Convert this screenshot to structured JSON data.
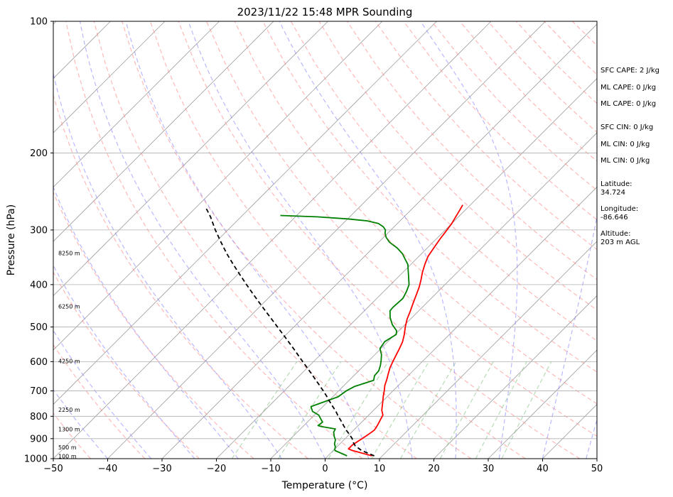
{
  "chart_data": {
    "type": "line",
    "subtype": "skew-T log-P sounding",
    "title": "2023/11/22 15:48 MPR Sounding",
    "xlabel": "Temperature (°C)",
    "ylabel": "Pressure (hPa)",
    "xlim": [
      -50,
      50
    ],
    "ylim": [
      1000,
      100
    ],
    "y_scale": "log",
    "x_ticks": [
      -50,
      -40,
      -30,
      -20,
      -10,
      0,
      10,
      20,
      30,
      40,
      50
    ],
    "x_tick_labels": [
      "−50",
      "−40",
      "−30",
      "−20",
      "−10",
      "0",
      "10",
      "20",
      "30",
      "40",
      "50"
    ],
    "y_ticks": [
      1000,
      900,
      800,
      700,
      600,
      500,
      400,
      300,
      200,
      100
    ],
    "y_tick_labels": [
      "1000",
      "900",
      "800",
      "700",
      "600",
      "500",
      "400",
      "300",
      "200",
      "100"
    ],
    "grid": true,
    "background_lines": {
      "isotherms_color": "#a0a0a0",
      "dry_adiabats_color": "#ff8080",
      "moist_adiabats_color": "#8080ff",
      "mixing_ratio_color": "#60b060"
    },
    "series": [
      {
        "color": "#ff0000",
        "style": "solid",
        "points": [
          [
            8.1,
            985
          ],
          [
            3.5,
            958
          ],
          [
            2.5,
            950
          ],
          [
            2.5,
            930
          ],
          [
            3.0,
            905
          ],
          [
            3.5,
            880
          ],
          [
            3.8,
            860
          ],
          [
            3.5,
            840
          ],
          [
            3.0,
            815
          ],
          [
            2.6,
            795
          ],
          [
            1.5,
            775
          ],
          [
            0.3,
            745
          ],
          [
            -0.8,
            720
          ],
          [
            -1.6,
            700
          ],
          [
            -2.5,
            680
          ],
          [
            -3.2,
            660
          ],
          [
            -4.0,
            640
          ],
          [
            -4.8,
            620
          ],
          [
            -5.4,
            600
          ],
          [
            -6.0,
            580
          ],
          [
            -6.6,
            560
          ],
          [
            -7.3,
            540
          ],
          [
            -8.3,
            520
          ],
          [
            -9.5,
            500
          ],
          [
            -10.6,
            480
          ],
          [
            -11.5,
            460
          ],
          [
            -12.5,
            440
          ],
          [
            -13.5,
            420
          ],
          [
            -14.3,
            405
          ],
          [
            -15.3,
            390
          ],
          [
            -16.4,
            375
          ],
          [
            -17.4,
            360
          ],
          [
            -18.3,
            345
          ],
          [
            -18.8,
            330
          ],
          [
            -19.3,
            315
          ],
          [
            -19.7,
            300
          ],
          [
            -20.0,
            290
          ],
          [
            -20.5,
            280
          ],
          [
            -21.0,
            270
          ],
          [
            -21.4,
            263
          ]
        ]
      },
      {
        "color": "#008000",
        "style": "solid",
        "points": [
          [
            3.5,
            985
          ],
          [
            0.3,
            958
          ],
          [
            0.0,
            950
          ],
          [
            -0.3,
            940
          ],
          [
            -1.0,
            925
          ],
          [
            -1.6,
            905
          ],
          [
            -2.4,
            890
          ],
          [
            -3.3,
            870
          ],
          [
            -3.6,
            855
          ],
          [
            -6.5,
            845
          ],
          [
            -7.4,
            840
          ],
          [
            -7.2,
            825
          ],
          [
            -8.2,
            810
          ],
          [
            -9.2,
            795
          ],
          [
            -11.0,
            780
          ],
          [
            -12.2,
            760
          ],
          [
            -10.5,
            740
          ],
          [
            -9.0,
            722
          ],
          [
            -8.6,
            700
          ],
          [
            -7.9,
            684
          ],
          [
            -5.5,
            662
          ],
          [
            -6.2,
            646
          ],
          [
            -6.3,
            630
          ],
          [
            -7.0,
            612
          ],
          [
            -7.8,
            596
          ],
          [
            -8.8,
            578
          ],
          [
            -10.2,
            560
          ],
          [
            -10.6,
            540
          ],
          [
            -9.8,
            520
          ],
          [
            -10.4,
            510
          ],
          [
            -12.3,
            494
          ],
          [
            -14.0,
            476
          ],
          [
            -15.3,
            459
          ],
          [
            -15.4,
            450
          ],
          [
            -15.3,
            440
          ],
          [
            -15.2,
            430
          ],
          [
            -15.8,
            415
          ],
          [
            -16.6,
            400
          ],
          [
            -18.5,
            380
          ],
          [
            -19.5,
            370
          ],
          [
            -20.5,
            360
          ],
          [
            -22.0,
            350
          ],
          [
            -23.5,
            340
          ],
          [
            -25.5,
            330
          ],
          [
            -28.0,
            320
          ],
          [
            -29.5,
            312
          ],
          [
            -30.5,
            305
          ],
          [
            -31.0,
            300
          ],
          [
            -32.0,
            295
          ],
          [
            -33.5,
            290
          ],
          [
            -36.0,
            286
          ],
          [
            -40.0,
            283
          ],
          [
            -46.0,
            280
          ],
          [
            -53.0,
            278
          ]
        ]
      },
      {
        "color": "#000000",
        "style": "dashed",
        "points": [
          [
            8.5,
            985
          ],
          [
            5.2,
            958
          ],
          [
            3.2,
            935
          ],
          [
            2.3,
            920
          ],
          [
            1.3,
            900
          ],
          [
            0.0,
            880
          ],
          [
            -1.4,
            860
          ],
          [
            -2.7,
            840
          ],
          [
            -4.0,
            820
          ],
          [
            -5.4,
            800
          ],
          [
            -6.7,
            780
          ],
          [
            -8.2,
            760
          ],
          [
            -9.7,
            740
          ],
          [
            -11.2,
            720
          ],
          [
            -12.8,
            700
          ],
          [
            -14.5,
            680
          ],
          [
            -16.3,
            660
          ],
          [
            -18.1,
            640
          ],
          [
            -20.0,
            620
          ],
          [
            -22.0,
            600
          ],
          [
            -24.0,
            580
          ],
          [
            -26.1,
            560
          ],
          [
            -28.3,
            540
          ],
          [
            -30.6,
            520
          ],
          [
            -33.0,
            500
          ],
          [
            -35.5,
            480
          ],
          [
            -38.1,
            460
          ],
          [
            -40.8,
            440
          ],
          [
            -43.6,
            420
          ],
          [
            -46.5,
            400
          ],
          [
            -49.5,
            380
          ],
          [
            -52.6,
            360
          ],
          [
            -55.8,
            340
          ],
          [
            -59.0,
            320
          ],
          [
            -62.3,
            300
          ],
          [
            -65.6,
            280
          ],
          [
            -68.5,
            265
          ]
        ]
      }
    ],
    "height_labels": [
      "100 m",
      "500 m",
      "1300 m",
      "2250 m",
      "4250 m",
      "6250 m",
      "8250 m"
    ],
    "height_label_pressures": [
      990,
      945,
      860,
      775,
      600,
      450,
      340
    ]
  },
  "side_panel": {
    "sfc_cape": "SFC CAPE: 2 J/kg",
    "ml_cape_1": "ML CAPE: 0 J/kg",
    "ml_cape_2": "ML CAPE: 0 J/kg",
    "sfc_cin": "SFC CIN: 0 J/kg",
    "ml_cin_1": "ML CIN: 0 J/kg",
    "ml_cin_2": "ML CIN: 0 J/kg",
    "latitude_label": "Latitude:",
    "latitude_value": "34.724",
    "longitude_label": "Longitude:",
    "longitude_value": "-86.646",
    "altitude_label": "Altitude:",
    "altitude_value": "203 m AGL"
  }
}
